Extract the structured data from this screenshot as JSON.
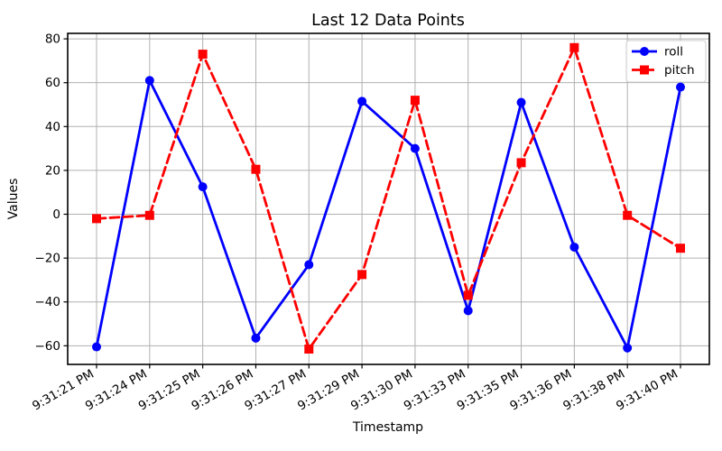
{
  "chart_data": {
    "type": "line",
    "title": "Last 12 Data Points",
    "xlabel": "Timestamp",
    "ylabel": "Values",
    "categories": [
      "9:31:21 PM",
      "9:31:24 PM",
      "9:31:25 PM",
      "9:31:26 PM",
      "9:31:27 PM",
      "9:31:29 PM",
      "9:31:30 PM",
      "9:31:33 PM",
      "9:31:35 PM",
      "9:31:36 PM",
      "9:31:38 PM",
      "9:31:40 PM"
    ],
    "series": [
      {
        "name": "roll",
        "color": "#0000ff",
        "marker": "circle",
        "linestyle": "solid",
        "values": [
          -60.5,
          61,
          12.5,
          -56.5,
          -23,
          51.5,
          30,
          -44,
          51,
          -15,
          -61,
          58
        ]
      },
      {
        "name": "pitch",
        "color": "#ff0000",
        "marker": "square",
        "linestyle": "dashed",
        "values": [
          -2,
          -0.5,
          73,
          20.5,
          -61.5,
          -27.5,
          52,
          -37,
          23.5,
          76,
          -0.5,
          -15.5
        ]
      }
    ],
    "yticks": [
      -60,
      -40,
      -20,
      0,
      20,
      40,
      60,
      80
    ],
    "ylim": [
      -68.5,
      82.5
    ],
    "grid": true,
    "legend": {
      "position": "upper right",
      "entries": [
        "roll",
        "pitch"
      ]
    },
    "colors": {
      "grid": "#b0b0b0",
      "spine": "#000000",
      "text": "#000000",
      "background": "#ffffff"
    }
  }
}
